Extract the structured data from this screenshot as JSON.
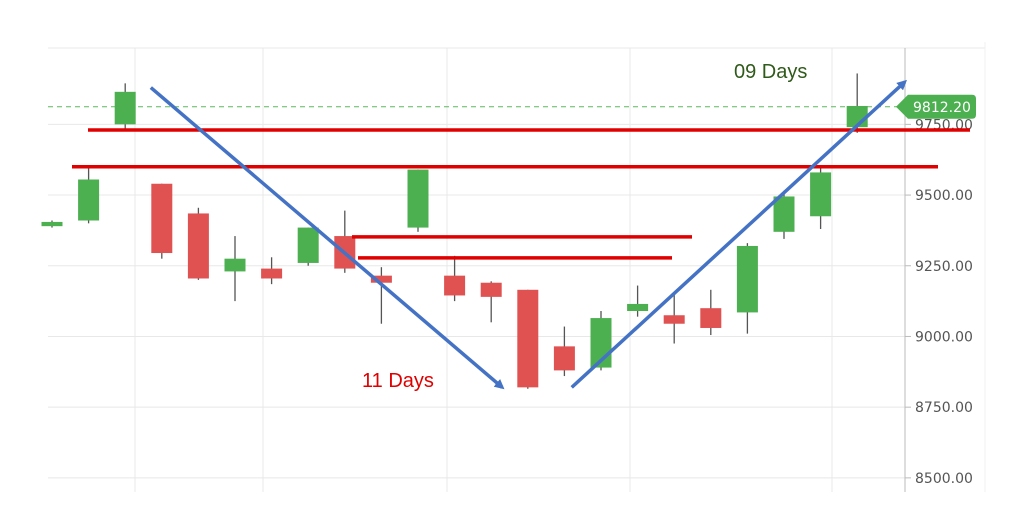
{
  "chart_data": {
    "type": "candlestick",
    "grid": true,
    "colors": {
      "up": "#4caf50",
      "down": "#e05252",
      "wick": "#555555",
      "grid": "#e8e8e8",
      "level_line": "#e00000",
      "trend_arrow": "#4472c4",
      "current_price_line": "#5cb85c",
      "price_tag_bg": "#4caf50",
      "annotation_down": "#e00000",
      "annotation_up": "#2f5a1a"
    },
    "y_axis": {
      "range": [
        8450,
        10020
      ],
      "ticks": [
        8500,
        8750,
        9000,
        9250,
        9500,
        9750
      ],
      "tick_labels": [
        "8500.00",
        "8750.00",
        "9000.00",
        "9250.00",
        "9500.00",
        "9750.00"
      ]
    },
    "candles": [
      {
        "open": 9390,
        "close": 9405,
        "high": 9410,
        "low": 9385
      },
      {
        "open": 9410,
        "close": 9555,
        "high": 9600,
        "low": 9400
      },
      {
        "open": 9750,
        "close": 9865,
        "high": 9895,
        "low": 9735
      },
      {
        "open": 9540,
        "close": 9295,
        "high": 9540,
        "low": 9275
      },
      {
        "open": 9435,
        "close": 9205,
        "high": 9455,
        "low": 9200
      },
      {
        "open": 9230,
        "close": 9275,
        "high": 9355,
        "low": 9125
      },
      {
        "open": 9240,
        "close": 9205,
        "high": 9280,
        "low": 9185
      },
      {
        "open": 9260,
        "close": 9385,
        "high": 9385,
        "low": 9250
      },
      {
        "open": 9355,
        "close": 9240,
        "high": 9445,
        "low": 9225
      },
      {
        "open": 9215,
        "close": 9190,
        "high": 9245,
        "low": 9045
      },
      {
        "open": 9385,
        "close": 9590,
        "high": 9590,
        "low": 9370
      },
      {
        "open": 9215,
        "close": 9145,
        "high": 9285,
        "low": 9125
      },
      {
        "open": 9190,
        "close": 9140,
        "high": 9195,
        "low": 9050
      },
      {
        "open": 9165,
        "close": 8820,
        "high": 9165,
        "low": 8815
      },
      {
        "open": 8965,
        "close": 8880,
        "high": 9035,
        "low": 8860
      },
      {
        "open": 8890,
        "close": 9065,
        "high": 9090,
        "low": 8880
      },
      {
        "open": 9090,
        "close": 9115,
        "high": 9180,
        "low": 9070
      },
      {
        "open": 9075,
        "close": 9045,
        "high": 9150,
        "low": 8975
      },
      {
        "open": 9100,
        "close": 9030,
        "high": 9165,
        "low": 9005
      },
      {
        "open": 9085,
        "close": 9320,
        "high": 9330,
        "low": 9010
      },
      {
        "open": 9370,
        "close": 9495,
        "high": 9515,
        "low": 9345
      },
      {
        "open": 9425,
        "close": 9580,
        "high": 9600,
        "low": 9380
      },
      {
        "open": 9740,
        "close": 9815,
        "high": 9930,
        "low": 9720
      }
    ],
    "current_price": {
      "value": 9812.2,
      "label": "9812.20"
    },
    "horizontal_levels": [
      {
        "value": 9730
      },
      {
        "value": 9600
      },
      {
        "value": 9352
      },
      {
        "value": 9278
      }
    ],
    "trend_arrows": [
      {
        "from_candle": 2.7,
        "from_price": 9880,
        "to_candle": 12.3,
        "to_price": 8820
      },
      {
        "from_candle": 14.2,
        "from_price": 8820,
        "to_candle": 23.3,
        "to_price": 9900
      }
    ],
    "annotations": [
      {
        "text": "11 Days",
        "tone": "down"
      },
      {
        "text": "09 Days",
        "tone": "up"
      }
    ]
  }
}
